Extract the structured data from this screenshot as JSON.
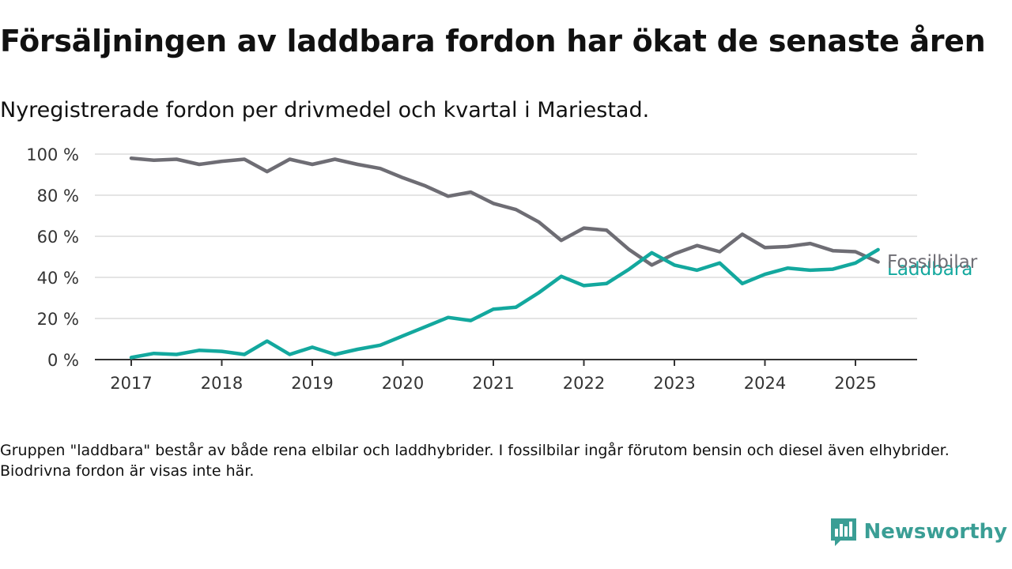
{
  "title": "Försäljningen av laddbara fordon har ökat de senaste åren",
  "subtitle": "Nyregistrerade fordon per drivmedel och kvartal i Mariestad.",
  "footnote": "Gruppen \"laddbara\" består av både rena elbilar och laddhybrider. I fossilbilar ingår förutom bensin och diesel även elhybrider. Biodrivna fordon är visas inte här.",
  "brand": {
    "name": "Newsworthy",
    "icon": "newsworthy-logo-icon",
    "color": "#3a9e95"
  },
  "chart_data": {
    "type": "line",
    "title": "",
    "xlabel": "",
    "ylabel": "",
    "x": [
      "2017 Q1",
      "2017 Q2",
      "2017 Q3",
      "2017 Q4",
      "2018 Q1",
      "2018 Q2",
      "2018 Q3",
      "2018 Q4",
      "2019 Q1",
      "2019 Q2",
      "2019 Q3",
      "2019 Q4",
      "2020 Q1",
      "2020 Q2",
      "2020 Q3",
      "2020 Q4",
      "2021 Q1",
      "2021 Q2",
      "2021 Q3",
      "2021 Q4",
      "2022 Q1",
      "2022 Q2",
      "2022 Q3",
      "2022 Q4",
      "2023 Q1",
      "2023 Q2",
      "2023 Q3",
      "2023 Q4",
      "2024 Q1",
      "2024 Q2",
      "2024 Q3",
      "2024 Q4",
      "2025 Q1",
      "2025 Q2"
    ],
    "x_ticks": [
      "2017",
      "2018",
      "2019",
      "2020",
      "2021",
      "2022",
      "2023",
      "2024",
      "2025"
    ],
    "y_ticks": [
      "0 %",
      "20 %",
      "40 %",
      "60 %",
      "80 %",
      "100 %"
    ],
    "ylim": [
      0,
      100
    ],
    "grid": true,
    "legend": "direct labels at line ends",
    "series": [
      {
        "name": "Fossilbilar",
        "color": "#6e6d74",
        "values": [
          98,
          97,
          97.5,
          95,
          96.5,
          97.5,
          91.5,
          97.5,
          95,
          97.5,
          95,
          93,
          88.5,
          84.5,
          79.5,
          81.5,
          76,
          73,
          67,
          58,
          64,
          63,
          53.5,
          46,
          51.5,
          55.5,
          52.5,
          61,
          54.5,
          55,
          56.5,
          53,
          52.5,
          47.5
        ]
      },
      {
        "name": "Laddbara",
        "color": "#13a89e",
        "values": [
          1,
          3,
          2.5,
          4.5,
          4,
          2.5,
          9,
          2.5,
          6,
          2.5,
          5,
          7,
          11.5,
          16,
          20.5,
          19,
          24.5,
          25.5,
          32.5,
          40.5,
          36,
          37,
          44,
          52,
          46,
          43.5,
          47,
          37,
          41.5,
          44.5,
          43.5,
          44,
          47,
          53.5
        ]
      }
    ]
  }
}
